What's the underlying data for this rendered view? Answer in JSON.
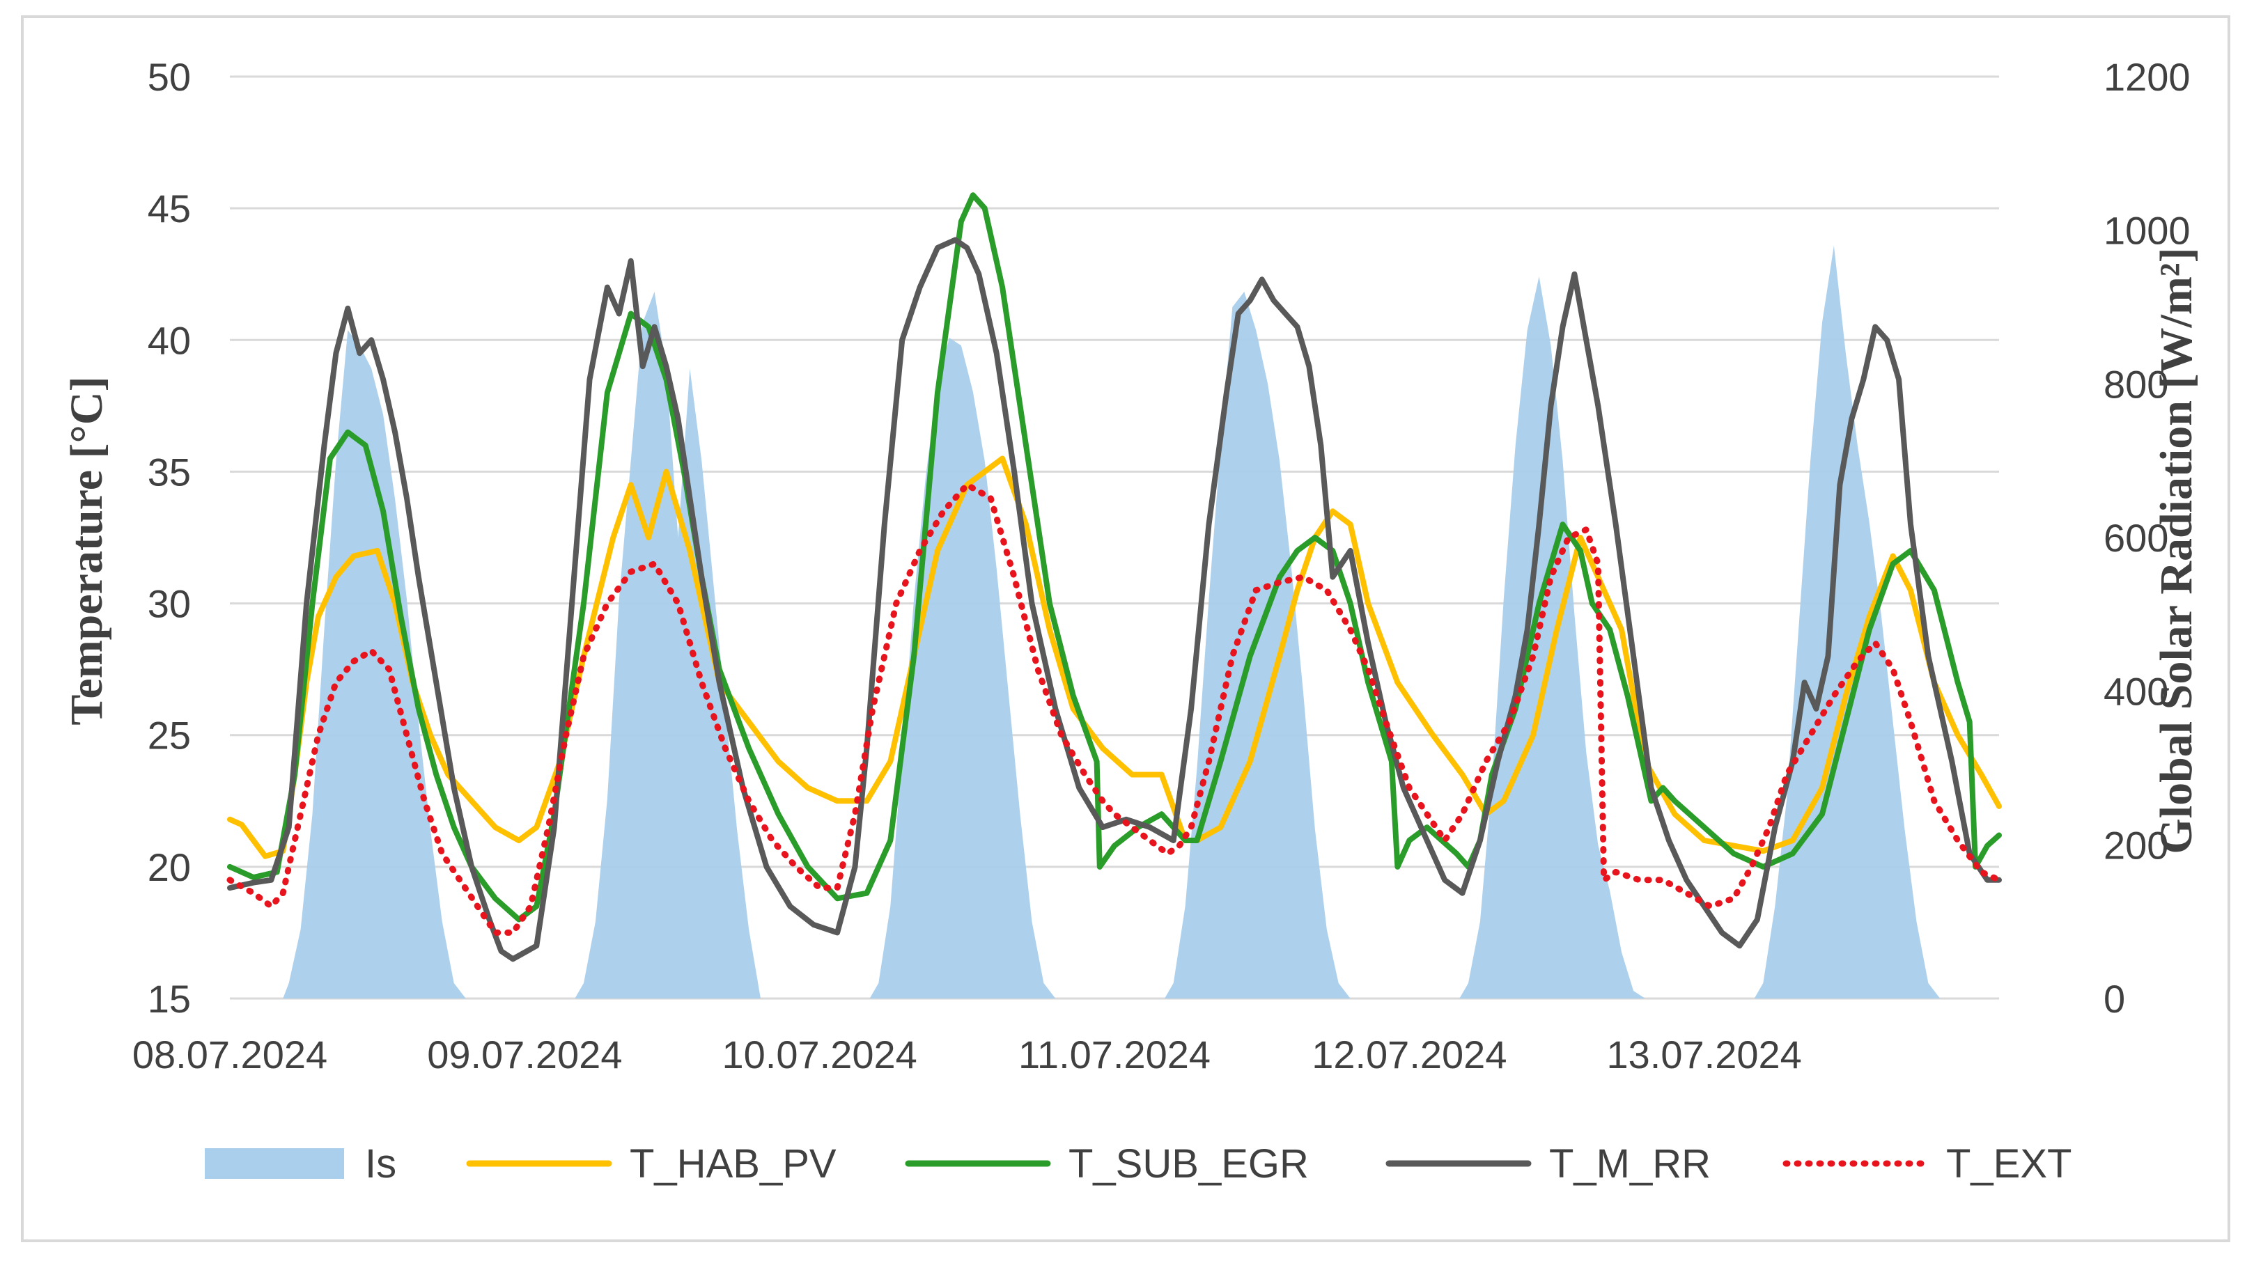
{
  "chart_data": {
    "type": "line",
    "title": "",
    "xlabel": "",
    "ylabel": "Temperature [°C]",
    "y2label": "Global Solar Radiation [W/m²]",
    "ylim": [
      15,
      50
    ],
    "y2lim": [
      0,
      1200
    ],
    "yticks": [
      "15",
      "20",
      "25",
      "30",
      "35",
      "40",
      "45",
      "50"
    ],
    "y2ticks": [
      "0",
      "200",
      "400",
      "600",
      "800",
      "1000",
      "1200"
    ],
    "xlim": [
      0,
      6
    ],
    "x_unit": "days since 08.07.2024 00:00",
    "categories": [
      "08.07.2024",
      "09.07.2024",
      "10.07.2024",
      "11.07.2024",
      "12.07.2024",
      "13.07.2024"
    ],
    "grid": true,
    "legend_position": "bottom",
    "series": [
      {
        "name": "Is",
        "type": "area",
        "axis": "right",
        "color": "#a9cfec",
        "x": [
          0,
          0.18,
          0.2,
          0.24,
          0.28,
          0.32,
          0.36,
          0.4,
          0.44,
          0.48,
          0.52,
          0.56,
          0.6,
          0.64,
          0.68,
          0.72,
          0.76,
          0.8,
          1.17,
          1.2,
          1.24,
          1.28,
          1.32,
          1.36,
          1.4,
          1.44,
          1.48,
          1.52,
          1.56,
          1.6,
          1.64,
          1.68,
          1.72,
          1.76,
          1.8,
          2.17,
          2.2,
          2.24,
          2.28,
          2.32,
          2.36,
          2.4,
          2.44,
          2.48,
          2.52,
          2.56,
          2.6,
          2.64,
          2.68,
          2.72,
          2.76,
          2.8,
          3.17,
          3.2,
          3.24,
          3.28,
          3.32,
          3.36,
          3.4,
          3.44,
          3.48,
          3.52,
          3.56,
          3.6,
          3.64,
          3.68,
          3.72,
          3.76,
          3.8,
          4.17,
          4.2,
          4.24,
          4.28,
          4.32,
          4.36,
          4.4,
          4.44,
          4.48,
          4.52,
          4.56,
          4.6,
          4.64,
          4.68,
          4.72,
          4.76,
          4.8,
          5.17,
          5.2,
          5.24,
          5.28,
          5.32,
          5.36,
          5.4,
          5.44,
          5.48,
          5.52,
          5.56,
          5.6,
          5.64,
          5.68,
          5.72,
          5.76,
          5.8,
          6.0
        ],
        "values": [
          0,
          0,
          20,
          90,
          240,
          480,
          700,
          870,
          850,
          820,
          760,
          650,
          520,
          360,
          220,
          100,
          20,
          0,
          0,
          20,
          100,
          260,
          520,
          700,
          880,
          920,
          820,
          600,
          820,
          700,
          540,
          380,
          220,
          90,
          0,
          0,
          20,
          120,
          320,
          520,
          680,
          800,
          860,
          850,
          790,
          700,
          560,
          400,
          240,
          100,
          20,
          0,
          0,
          20,
          120,
          300,
          520,
          720,
          900,
          920,
          870,
          800,
          700,
          560,
          400,
          220,
          90,
          20,
          0,
          0,
          20,
          100,
          280,
          520,
          720,
          870,
          940,
          850,
          700,
          500,
          320,
          200,
          140,
          60,
          10,
          0,
          0,
          20,
          120,
          260,
          480,
          700,
          880,
          980,
          840,
          720,
          620,
          500,
          360,
          220,
          100,
          20,
          0,
          0
        ]
      },
      {
        "name": "T_HAB_PV",
        "type": "line",
        "axis": "left",
        "color": "#ffc000",
        "dash": "solid",
        "x": [
          0,
          0.04,
          0.12,
          0.18,
          0.22,
          0.26,
          0.3,
          0.36,
          0.42,
          0.5,
          0.56,
          0.62,
          0.68,
          0.74,
          0.82,
          0.9,
          0.98,
          1.04,
          1.12,
          1.2,
          1.3,
          1.36,
          1.42,
          1.48,
          1.56,
          1.62,
          1.66,
          1.76,
          1.86,
          1.96,
          2.06,
          2.16,
          2.24,
          2.32,
          2.4,
          2.5,
          2.62,
          2.7,
          2.78,
          2.86,
          2.96,
          3.06,
          3.16,
          3.24,
          3.28,
          3.36,
          3.46,
          3.56,
          3.62,
          3.68,
          3.74,
          3.8,
          3.86,
          3.96,
          4.08,
          4.18,
          4.26,
          4.32,
          4.42,
          4.5,
          4.58,
          4.64,
          4.72,
          4.8,
          4.9,
          5.0,
          5.1,
          5.2,
          5.3,
          5.4,
          5.48,
          5.56,
          5.64,
          5.7,
          5.78,
          5.86,
          5.94,
          6.0
        ],
        "values": [
          21.8,
          21.6,
          20.4,
          20.6,
          23.5,
          27.0,
          29.5,
          31.0,
          31.8,
          32.0,
          30.0,
          27.0,
          25.0,
          23.5,
          22.5,
          21.5,
          21.0,
          21.5,
          24.0,
          28.0,
          32.5,
          34.5,
          32.5,
          35.0,
          32.0,
          29.0,
          27.0,
          25.5,
          24.0,
          23.0,
          22.5,
          22.5,
          24.0,
          28.0,
          32.0,
          34.5,
          35.5,
          33.0,
          29.0,
          26.0,
          24.5,
          23.5,
          23.5,
          21.0,
          21.0,
          21.5,
          24.0,
          28.0,
          30.5,
          32.5,
          33.5,
          33.0,
          30.0,
          27.0,
          25.0,
          23.5,
          22.0,
          22.5,
          25.0,
          29.0,
          32.5,
          31.0,
          29.0,
          24.0,
          22.0,
          21.0,
          20.8,
          20.6,
          21.0,
          23.0,
          26.5,
          29.5,
          31.8,
          30.5,
          27.0,
          25.0,
          23.5,
          22.3
        ]
      },
      {
        "name": "T_SUB_EGR",
        "type": "line",
        "axis": "left",
        "color": "#2a9c2a",
        "dash": "solid",
        "x": [
          0,
          0.08,
          0.16,
          0.22,
          0.28,
          0.34,
          0.4,
          0.46,
          0.52,
          0.58,
          0.64,
          0.7,
          0.76,
          0.82,
          0.9,
          0.98,
          1.04,
          1.1,
          1.2,
          1.28,
          1.36,
          1.42,
          1.48,
          1.54,
          1.6,
          1.66,
          1.76,
          1.86,
          1.96,
          2.06,
          2.16,
          2.24,
          2.32,
          2.4,
          2.48,
          2.52,
          2.56,
          2.62,
          2.7,
          2.78,
          2.86,
          2.94,
          2.95,
          3.0,
          3.08,
          3.16,
          3.24,
          3.28,
          3.36,
          3.46,
          3.56,
          3.62,
          3.68,
          3.74,
          3.8,
          3.86,
          3.94,
          3.96,
          4.0,
          4.06,
          4.16,
          4.2,
          4.24,
          4.28,
          4.36,
          4.44,
          4.52,
          4.58,
          4.62,
          4.68,
          4.74,
          4.82,
          4.86,
          4.9,
          5.0,
          5.1,
          5.2,
          5.3,
          5.4,
          5.48,
          5.56,
          5.64,
          5.7,
          5.78,
          5.86,
          5.9,
          5.92,
          5.96,
          6.0
        ],
        "values": [
          20.0,
          19.6,
          19.8,
          23.5,
          30.0,
          35.5,
          36.5,
          36.0,
          33.5,
          29.5,
          26.0,
          23.5,
          21.5,
          20.0,
          18.8,
          18.0,
          18.5,
          22.0,
          30.0,
          38.0,
          41.0,
          40.5,
          38.5,
          35.0,
          31.0,
          27.5,
          24.5,
          22.0,
          20.0,
          18.8,
          19.0,
          21.0,
          28.0,
          38.0,
          44.5,
          45.5,
          45.0,
          42.0,
          36.0,
          30.0,
          26.5,
          24.0,
          20.0,
          20.8,
          21.5,
          22.0,
          21.0,
          21.0,
          24.0,
          28.0,
          31.0,
          32.0,
          32.5,
          32.0,
          30.0,
          27.0,
          24.0,
          20.0,
          21.0,
          21.5,
          20.5,
          20.0,
          21.0,
          23.5,
          26.0,
          30.0,
          33.0,
          32.0,
          30.0,
          29.0,
          26.5,
          22.5,
          23.0,
          22.5,
          21.5,
          20.5,
          20.0,
          20.5,
          22.0,
          25.5,
          29.0,
          31.5,
          32.0,
          30.5,
          27.0,
          25.5,
          20.0,
          20.8,
          21.2
        ]
      },
      {
        "name": "T_M_RR",
        "type": "line",
        "axis": "left",
        "color": "#595959",
        "dash": "solid",
        "x": [
          0,
          0.08,
          0.14,
          0.2,
          0.26,
          0.32,
          0.36,
          0.4,
          0.44,
          0.48,
          0.52,
          0.56,
          0.6,
          0.64,
          0.7,
          0.76,
          0.82,
          0.88,
          0.92,
          0.96,
          1.04,
          1.1,
          1.16,
          1.22,
          1.28,
          1.32,
          1.36,
          1.4,
          1.44,
          1.48,
          1.52,
          1.56,
          1.6,
          1.66,
          1.74,
          1.82,
          1.9,
          1.98,
          2.06,
          2.12,
          2.16,
          2.22,
          2.28,
          2.34,
          2.4,
          2.46,
          2.5,
          2.54,
          2.6,
          2.66,
          2.72,
          2.8,
          2.88,
          2.96,
          3.04,
          3.12,
          3.2,
          3.26,
          3.32,
          3.38,
          3.42,
          3.46,
          3.5,
          3.54,
          3.58,
          3.62,
          3.66,
          3.7,
          3.74,
          3.8,
          3.86,
          3.92,
          3.98,
          4.06,
          4.12,
          4.18,
          4.24,
          4.3,
          4.36,
          4.4,
          4.44,
          4.48,
          4.52,
          4.56,
          4.6,
          4.64,
          4.7,
          4.76,
          4.82,
          4.88,
          4.94,
          5.0,
          5.06,
          5.12,
          5.18,
          5.24,
          5.3,
          5.34,
          5.38,
          5.42,
          5.46,
          5.5,
          5.54,
          5.58,
          5.62,
          5.66,
          5.7,
          5.76,
          5.84,
          5.9,
          5.96,
          6.0
        ],
        "values": [
          19.2,
          19.4,
          19.5,
          21.5,
          30.0,
          36.0,
          39.5,
          41.2,
          39.5,
          40.0,
          38.5,
          36.5,
          34.0,
          31.0,
          27.0,
          23.0,
          20.0,
          18.0,
          16.8,
          16.5,
          17.0,
          21.5,
          30.0,
          38.5,
          42.0,
          41.0,
          43.0,
          39.0,
          40.5,
          39.0,
          37.0,
          34.0,
          31.0,
          27.0,
          23.0,
          20.0,
          18.5,
          17.8,
          17.5,
          20.0,
          24.5,
          33.0,
          40.0,
          42.0,
          43.5,
          43.8,
          43.5,
          42.5,
          39.5,
          35.0,
          30.0,
          26.0,
          23.0,
          21.5,
          21.8,
          21.5,
          21.0,
          26.0,
          33.0,
          38.0,
          41.0,
          41.5,
          42.3,
          41.5,
          41.0,
          40.5,
          39.0,
          36.0,
          31.0,
          32.0,
          28.5,
          25.5,
          23.0,
          21.0,
          19.5,
          19.0,
          21.0,
          24.0,
          26.5,
          29.0,
          33.0,
          37.5,
          40.5,
          42.5,
          40.0,
          37.5,
          33.0,
          28.0,
          23.0,
          21.0,
          19.5,
          18.5,
          17.5,
          17.0,
          18.0,
          21.5,
          24.0,
          27.0,
          26.0,
          28.0,
          34.5,
          37.0,
          38.5,
          40.5,
          40.0,
          38.5,
          33.0,
          28.0,
          24.0,
          20.5,
          19.5,
          19.5
        ]
      },
      {
        "name": "T_EXT",
        "type": "line",
        "axis": "left",
        "color": "#e8141d",
        "dash": "dotted",
        "x": [
          0,
          0.08,
          0.14,
          0.18,
          0.24,
          0.3,
          0.36,
          0.42,
          0.48,
          0.54,
          0.6,
          0.66,
          0.72,
          0.78,
          0.84,
          0.9,
          0.96,
          1.02,
          1.08,
          1.14,
          1.2,
          1.28,
          1.36,
          1.44,
          1.52,
          1.6,
          1.68,
          1.76,
          1.84,
          1.92,
          2.0,
          2.06,
          2.12,
          2.18,
          2.26,
          2.34,
          2.42,
          2.5,
          2.58,
          2.66,
          2.74,
          2.82,
          2.9,
          2.96,
          3.0,
          3.06,
          3.12,
          3.18,
          3.22,
          3.26,
          3.32,
          3.4,
          3.48,
          3.56,
          3.64,
          3.72,
          3.8,
          3.86,
          3.92,
          4.0,
          4.06,
          4.12,
          4.18,
          4.26,
          4.34,
          4.42,
          4.48,
          4.54,
          4.6,
          4.64,
          4.66,
          4.7,
          4.78,
          4.86,
          4.94,
          5.02,
          5.1,
          5.16,
          5.22,
          5.28,
          5.36,
          5.44,
          5.52,
          5.58,
          5.64,
          5.7,
          5.78,
          5.86,
          5.94,
          6.0
        ],
        "values": [
          19.5,
          19.0,
          18.5,
          19.0,
          22.0,
          25.0,
          27.0,
          27.8,
          28.2,
          27.5,
          25.0,
          22.5,
          20.5,
          19.5,
          18.5,
          17.5,
          17.5,
          18.5,
          21.5,
          25.0,
          28.0,
          30.0,
          31.2,
          31.5,
          30.0,
          27.0,
          24.5,
          22.5,
          21.0,
          20.0,
          19.2,
          19.2,
          22.0,
          26.0,
          30.0,
          32.0,
          33.5,
          34.5,
          34.0,
          31.0,
          27.5,
          25.0,
          23.5,
          22.5,
          22.0,
          21.5,
          21.0,
          20.5,
          20.8,
          21.5,
          24.0,
          28.0,
          30.5,
          30.8,
          31.0,
          30.5,
          29.0,
          27.5,
          25.5,
          23.0,
          22.0,
          21.0,
          22.0,
          24.0,
          25.5,
          28.0,
          31.0,
          32.5,
          32.8,
          31.5,
          19.5,
          19.8,
          19.5,
          19.5,
          19.0,
          18.5,
          18.8,
          20.0,
          21.5,
          23.5,
          25.0,
          26.5,
          27.8,
          28.5,
          27.5,
          25.5,
          22.5,
          21.0,
          19.8,
          19.5
        ]
      }
    ]
  }
}
